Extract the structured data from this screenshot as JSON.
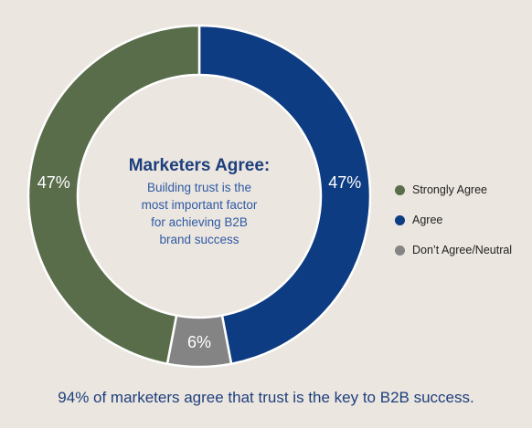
{
  "chart_data": {
    "type": "pie",
    "variant": "donut",
    "series": [
      {
        "name": "Agree",
        "value": 47,
        "label": "47%",
        "color": "#0e3c82"
      },
      {
        "name": "Don't Agree/Neutral",
        "value": 6,
        "label": "6%",
        "color": "#848484"
      },
      {
        "name": "Strongly Agree",
        "value": 47,
        "label": "47%",
        "color": "#5a6d4b"
      }
    ],
    "center": {
      "title": "Marketers Agree:",
      "lines": [
        "Building trust is the",
        "most important factor",
        "for achieving B2B",
        "brand success"
      ]
    },
    "legend": {
      "placement": "right",
      "items": [
        {
          "label": "Strongly Agree",
          "color": "#5a6d4b"
        },
        {
          "label": "Agree",
          "color": "#0e3c82"
        },
        {
          "label": "Don’t Agree/Neutral",
          "color": "#848484"
        }
      ]
    }
  },
  "footer": {
    "text": "94% of marketers agree that trust is the key to B2B success."
  }
}
